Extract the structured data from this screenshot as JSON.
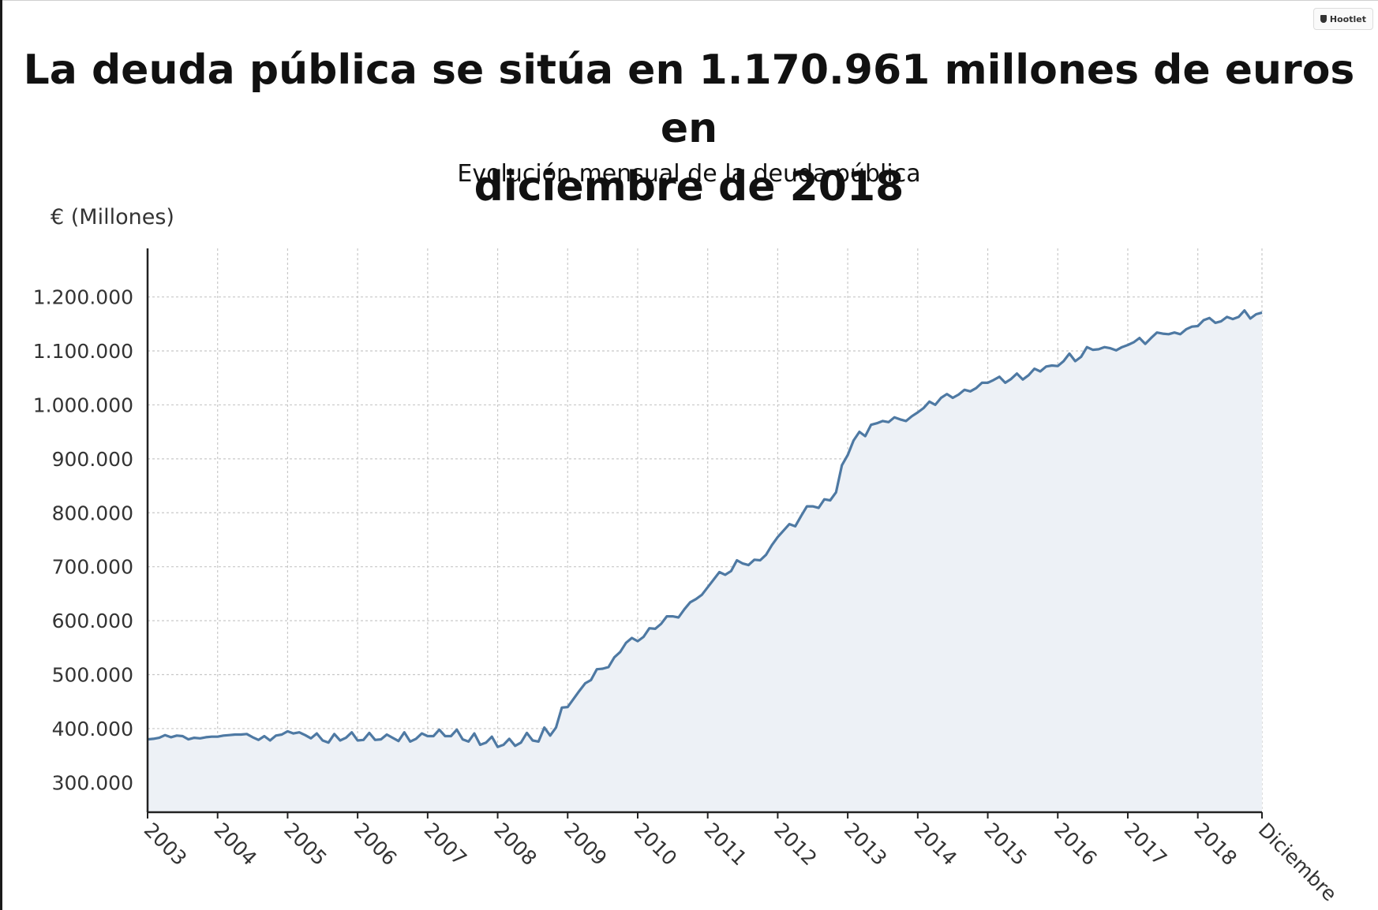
{
  "title_line1": "La deuda pública se sitúa en 1.170.961 millones de euros en",
  "title_line2": "diciembre de 2018",
  "subtitle": "Evolución mensual de la deuda pública",
  "unit_label": "€ (Millones)",
  "badge": {
    "label": "Hootlet",
    "icon": "hootlet-shield-icon"
  },
  "colors": {
    "line": "#4e79a3",
    "area": "#edf1f6",
    "grid": "#c8c8c8",
    "axis": "#222222"
  },
  "chart_data": {
    "type": "area",
    "x_range": [
      "2003-01",
      "2018-12"
    ],
    "ylim": [
      245000,
      1290000
    ],
    "y_ticks": [
      300000,
      400000,
      500000,
      600000,
      700000,
      800000,
      900000,
      1000000,
      1100000,
      1200000
    ],
    "y_tick_labels": [
      "300.000",
      "400.000",
      "500.000",
      "600.000",
      "700.000",
      "800.000",
      "900.000",
      "1.000.000",
      "1.100.000",
      "1.200.000"
    ],
    "x_tick_labels": [
      "2003",
      "2004",
      "2005",
      "2006",
      "2007",
      "2008",
      "2009",
      "2010",
      "2011",
      "2012",
      "2013",
      "2014",
      "2015",
      "2016",
      "2017",
      "2018",
      "Diciembre"
    ],
    "grid": true,
    "series": [
      {
        "start": "2003-01",
        "frequency": "monthly",
        "values": [
          380000,
          381000,
          383000,
          388000,
          384000,
          387000,
          386000,
          380000,
          383000,
          382000,
          384000,
          385000,
          385000,
          387000,
          388000,
          389000,
          389000,
          390000,
          384000,
          379000,
          386000,
          378000,
          387000,
          389000,
          395000,
          391000,
          393000,
          388000,
          382000,
          391000,
          378000,
          374000,
          390000,
          378000,
          383000,
          393000,
          378000,
          379000,
          392000,
          379000,
          380000,
          389000,
          383000,
          377000,
          393000,
          376000,
          381000,
          391000,
          386000,
          386000,
          398000,
          386000,
          386000,
          398000,
          380000,
          376000,
          391000,
          370000,
          374000,
          385000,
          366000,
          370000,
          381000,
          368000,
          374000,
          392000,
          378000,
          376000,
          402000,
          387000,
          402000,
          439000,
          440000,
          455000,
          470000,
          484000,
          490000,
          510000,
          511000,
          514000,
          532000,
          542000,
          559000,
          568000,
          562000,
          570000,
          586000,
          585000,
          594000,
          608000,
          608000,
          606000,
          621000,
          634000,
          640000,
          648000,
          662000,
          676000,
          690000,
          685000,
          692000,
          712000,
          706000,
          703000,
          713000,
          712000,
          722000,
          740000,
          755000,
          767000,
          779000,
          775000,
          794000,
          812000,
          812000,
          809000,
          825000,
          823000,
          838000,
          888000,
          907000,
          934000,
          950000,
          942000,
          963000,
          966000,
          970000,
          968000,
          977000,
          973000,
          970000,
          979000,
          986000,
          994000,
          1006000,
          1000000,
          1013000,
          1020000,
          1013000,
          1019000,
          1028000,
          1025000,
          1031000,
          1041000,
          1041000,
          1046000,
          1052000,
          1041000,
          1048000,
          1058000,
          1047000,
          1055000,
          1067000,
          1062000,
          1071000,
          1073000,
          1072000,
          1081000,
          1095000,
          1081000,
          1089000,
          1107000,
          1102000,
          1103000,
          1107000,
          1105000,
          1101000,
          1107000,
          1111000,
          1116000,
          1124000,
          1113000,
          1124000,
          1134000,
          1132000,
          1131000,
          1134000,
          1131000,
          1140000,
          1145000,
          1146000,
          1157000,
          1161000,
          1152000,
          1155000,
          1163000,
          1159000,
          1163000,
          1175000,
          1160000,
          1168000,
          1170961
        ]
      }
    ]
  }
}
